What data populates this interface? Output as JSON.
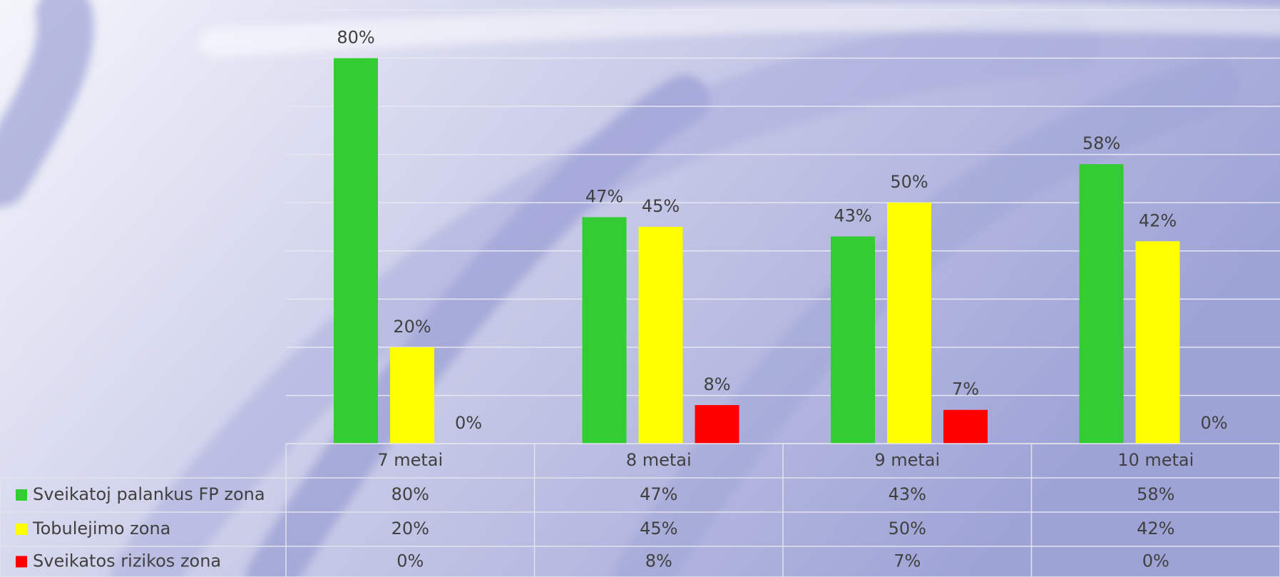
{
  "chart_data": {
    "type": "bar",
    "categories": [
      "7 metai",
      "8 metai",
      "9 metai",
      "10 metai"
    ],
    "series": [
      {
        "name": "Sveikatoj palankus FP zona",
        "color": "#33cc33",
        "values": [
          80,
          47,
          43,
          58
        ],
        "value_labels": [
          "80%",
          "47%",
          "43%",
          "58%"
        ]
      },
      {
        "name": "Tobulejimo zona",
        "color": "#ffff00",
        "values": [
          20,
          45,
          50,
          42
        ],
        "value_labels": [
          "20%",
          "45%",
          "50%",
          "42%"
        ]
      },
      {
        "name": "Sveikatos rizikos zona",
        "color": "#ff0000",
        "values": [
          0,
          8,
          7,
          0
        ],
        "value_labels": [
          "0%",
          "8%",
          "7%",
          "0%"
        ]
      }
    ],
    "ylim": [
      0,
      90
    ],
    "yticks": [
      0,
      10,
      20,
      30,
      40,
      50,
      60,
      70,
      80,
      90
    ],
    "grid": true
  }
}
